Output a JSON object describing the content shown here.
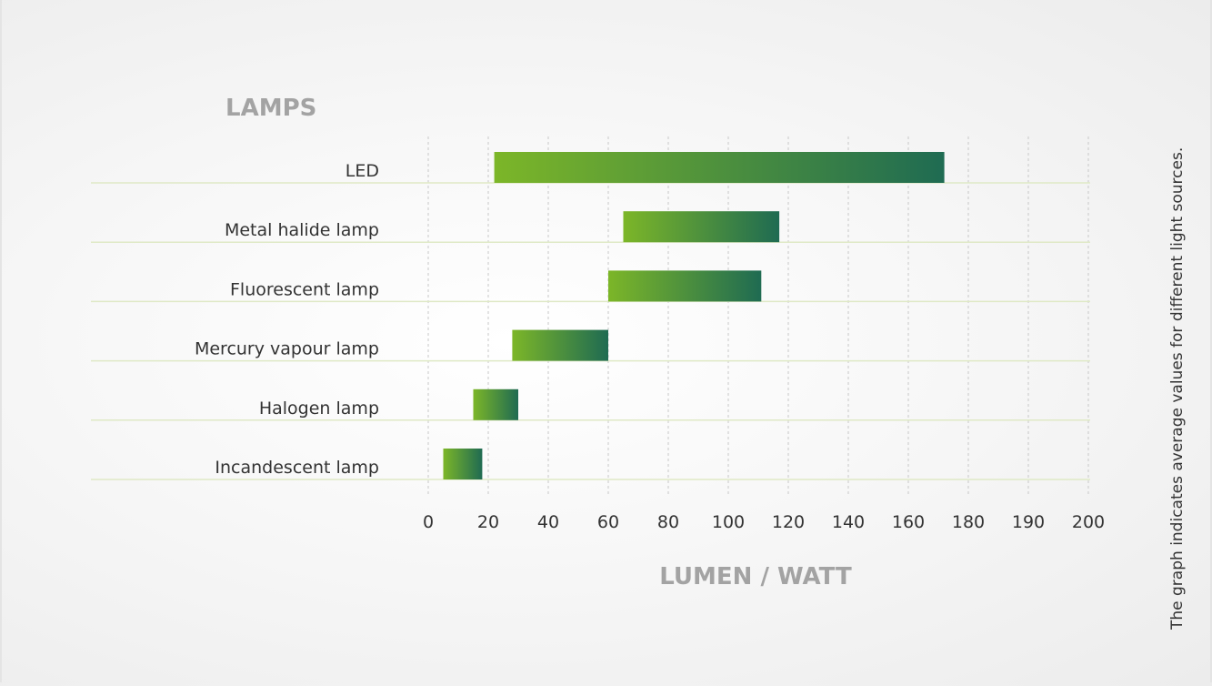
{
  "chart_data": {
    "type": "bar",
    "subtype": "floating-range-horizontal",
    "title": "LAMPS",
    "xlabel": "LUMEN / WATT",
    "note": "The graph indicates average values for different light sources.",
    "x_tick_labels": [
      "0",
      "20",
      "40",
      "60",
      "80",
      "100",
      "120",
      "140",
      "160",
      "180",
      "190",
      "200"
    ],
    "categories": [
      "LED",
      "Metal halide lamp",
      "Fluorescent lamp",
      "Mercury vapour lamp",
      "Halogen lamp",
      "Incandescent lamp"
    ],
    "ranges": [
      [
        22,
        172
      ],
      [
        65,
        117
      ],
      [
        60,
        111
      ],
      [
        28,
        60
      ],
      [
        15,
        30
      ],
      [
        5,
        18
      ]
    ],
    "grid": true,
    "colors": {
      "bar_start": "#7cb628",
      "bar_end": "#1f6b52",
      "row_line": "#dfe9c6",
      "grid_line": "#c8c8c8",
      "title": "#a3a3a3",
      "text": "#333333"
    }
  }
}
